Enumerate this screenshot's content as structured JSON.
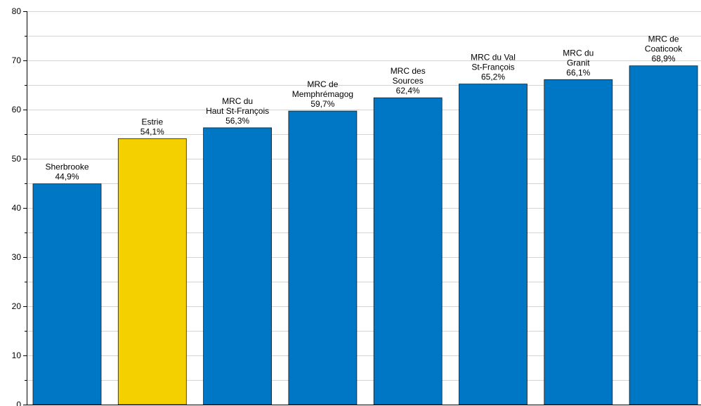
{
  "chart_data": {
    "type": "bar",
    "title": "",
    "xlabel": "",
    "ylabel": "",
    "ylim": [
      0,
      80
    ],
    "y_ticks": [
      0,
      10,
      20,
      30,
      40,
      50,
      60,
      70,
      80
    ],
    "grid": "horizontal, every 5 units",
    "legend": "none",
    "categories": [
      "Sherbrooke",
      "Estrie",
      "MRC du Haut St-François",
      "MRC de Memphrémagog",
      "MRC des Sources",
      "MRC du Val St-François",
      "MRC du Granit",
      "MRC de Coaticook"
    ],
    "values": [
      44.9,
      54.1,
      56.3,
      59.7,
      62.4,
      65.2,
      66.1,
      68.9
    ],
    "bars": [
      {
        "label_lines": [
          "Sherbrooke"
        ],
        "value_text": "44,9%",
        "value": 44.9,
        "color": "#0077c5"
      },
      {
        "label_lines": [
          "Estrie"
        ],
        "value_text": "54,1%",
        "value": 54.1,
        "color": "#f5d000"
      },
      {
        "label_lines": [
          "MRC du",
          "Haut St-François"
        ],
        "value_text": "56,3%",
        "value": 56.3,
        "color": "#0077c5"
      },
      {
        "label_lines": [
          "MRC de",
          "Memphrémagog"
        ],
        "value_text": "59,7%",
        "value": 59.7,
        "color": "#0077c5"
      },
      {
        "label_lines": [
          "MRC des",
          "Sources"
        ],
        "value_text": "62,4%",
        "value": 62.4,
        "color": "#0077c5"
      },
      {
        "label_lines": [
          "MRC du Val",
          "St-François"
        ],
        "value_text": "65,2%",
        "value": 65.2,
        "color": "#0077c5"
      },
      {
        "label_lines": [
          "MRC du",
          "Granit"
        ],
        "value_text": "66,1%",
        "value": 66.1,
        "color": "#0077c5"
      },
      {
        "label_lines": [
          "MRC de",
          "Coaticook"
        ],
        "value_text": "68,9%",
        "value": 68.9,
        "color": "#0077c5"
      }
    ],
    "colors": {
      "bar": "#0077c5",
      "highlight": "#f5d000",
      "grid": "#d4d4d4",
      "axis": "#000000"
    }
  }
}
